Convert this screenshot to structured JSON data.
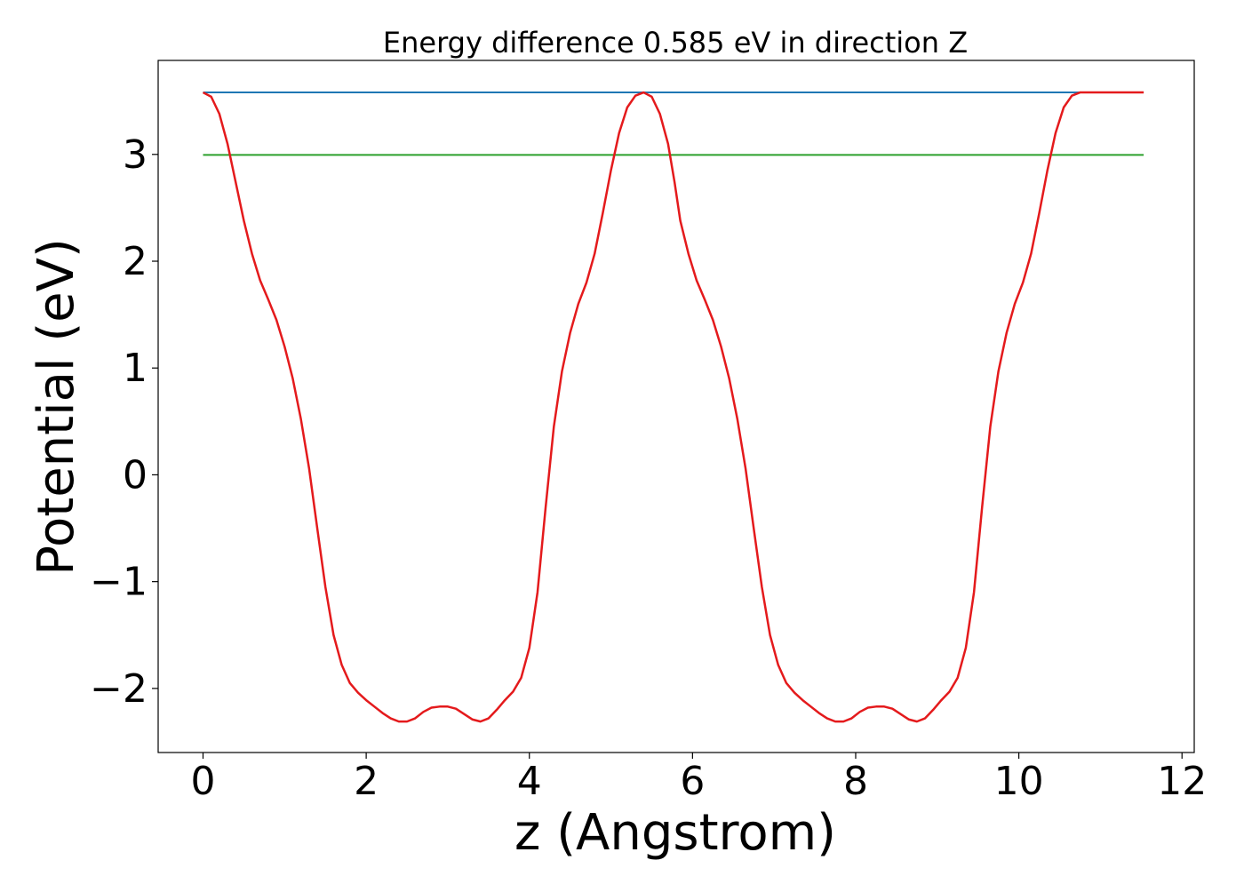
{
  "chart_data": {
    "type": "line",
    "title": "Energy difference 0.585 eV in direction Z",
    "xlabel": "z (Angstrom)",
    "ylabel": "Potential (eV)",
    "xlim": [
      -0.55,
      12.15
    ],
    "ylim": [
      -2.6,
      3.88
    ],
    "xticks": [
      0,
      2,
      4,
      6,
      8,
      10,
      12
    ],
    "xtick_labels": [
      "0",
      "2",
      "4",
      "6",
      "8",
      "10",
      "12"
    ],
    "yticks": [
      -2,
      -1,
      0,
      1,
      2,
      3
    ],
    "ytick_labels": [
      "−2",
      "−1",
      "0",
      "1",
      "2",
      "3"
    ],
    "grid": false,
    "colors": {
      "potential": "#e41a1c",
      "upper_level": "#1f77b4",
      "lower_level": "#2ca02c"
    },
    "series": [
      {
        "key": "potential",
        "x": [
          0,
          0.1,
          0.2,
          0.3,
          0.4,
          0.5,
          0.6,
          0.7,
          0.8,
          0.9,
          1.0,
          1.1,
          1.2,
          1.3,
          1.4,
          1.5,
          1.6,
          1.7,
          1.8,
          1.9,
          2.0,
          2.1,
          2.2,
          2.3,
          2.4,
          2.5,
          2.6,
          2.7,
          2.8,
          2.9,
          3.0,
          3.1,
          3.2,
          3.3,
          3.4,
          3.5,
          3.6,
          3.7,
          3.8,
          3.9,
          4.0,
          4.1,
          4.2,
          4.3,
          4.4,
          4.5,
          4.6,
          4.7,
          4.8,
          4.9,
          5.0,
          5.1,
          5.2,
          5.3,
          5.4,
          5.5,
          5.6,
          5.7,
          5.78,
          5.85,
          5.95,
          6.05,
          6.15,
          6.25,
          6.35,
          6.45,
          6.55,
          6.65,
          6.75,
          6.85,
          6.95,
          7.05,
          7.15,
          7.25,
          7.35,
          7.45,
          7.55,
          7.65,
          7.75,
          7.85,
          7.95,
          8.05,
          8.15,
          8.25,
          8.35,
          8.45,
          8.55,
          8.65,
          8.75,
          8.85,
          8.95,
          9.05,
          9.15,
          9.25,
          9.35,
          9.45,
          9.55,
          9.65,
          9.75,
          9.85,
          9.95,
          10.05,
          10.15,
          10.25,
          10.35,
          10.45,
          10.55,
          10.65,
          10.75,
          10.85,
          10.95,
          11.05,
          11.15,
          11.25,
          11.35,
          11.45,
          11.53
        ],
        "y": [
          3.58,
          3.54,
          3.38,
          3.1,
          2.74,
          2.38,
          2.07,
          1.82,
          1.64,
          1.45,
          1.2,
          0.9,
          0.52,
          0.06,
          -0.5,
          -1.05,
          -1.5,
          -1.78,
          -1.95,
          -2.04,
          -2.11,
          -2.17,
          -2.23,
          -2.28,
          -2.31,
          -2.31,
          -2.28,
          -2.22,
          -2.18,
          -2.17,
          -2.17,
          -2.19,
          -2.24,
          -2.29,
          -2.31,
          -2.28,
          -2.2,
          -2.11,
          -2.03,
          -1.9,
          -1.62,
          -1.1,
          -0.3,
          0.45,
          0.97,
          1.33,
          1.6,
          1.8,
          2.07,
          2.45,
          2.85,
          3.2,
          3.44,
          3.55,
          3.58,
          3.54,
          3.38,
          3.1,
          2.74,
          2.38,
          2.07,
          1.82,
          1.64,
          1.45,
          1.2,
          0.9,
          0.52,
          0.06,
          -0.5,
          -1.05,
          -1.5,
          -1.78,
          -1.95,
          -2.04,
          -2.11,
          -2.17,
          -2.23,
          -2.28,
          -2.31,
          -2.31,
          -2.28,
          -2.22,
          -2.18,
          -2.17,
          -2.17,
          -2.19,
          -2.24,
          -2.29,
          -2.31,
          -2.28,
          -2.2,
          -2.11,
          -2.03,
          -1.9,
          -1.62,
          -1.1,
          -0.3,
          0.45,
          0.97,
          1.33,
          1.6,
          1.8,
          2.07,
          2.45,
          2.85,
          3.2,
          3.44,
          3.55,
          3.58,
          3.58,
          3.58,
          3.58,
          3.58,
          3.58,
          3.58,
          3.58,
          3.58
        ]
      },
      {
        "key": "upper_level",
        "x": [
          0,
          11.53
        ],
        "y": [
          3.58,
          3.58
        ]
      },
      {
        "key": "lower_level",
        "x": [
          0,
          11.53
        ],
        "y": [
          2.995,
          2.995
        ]
      }
    ]
  }
}
